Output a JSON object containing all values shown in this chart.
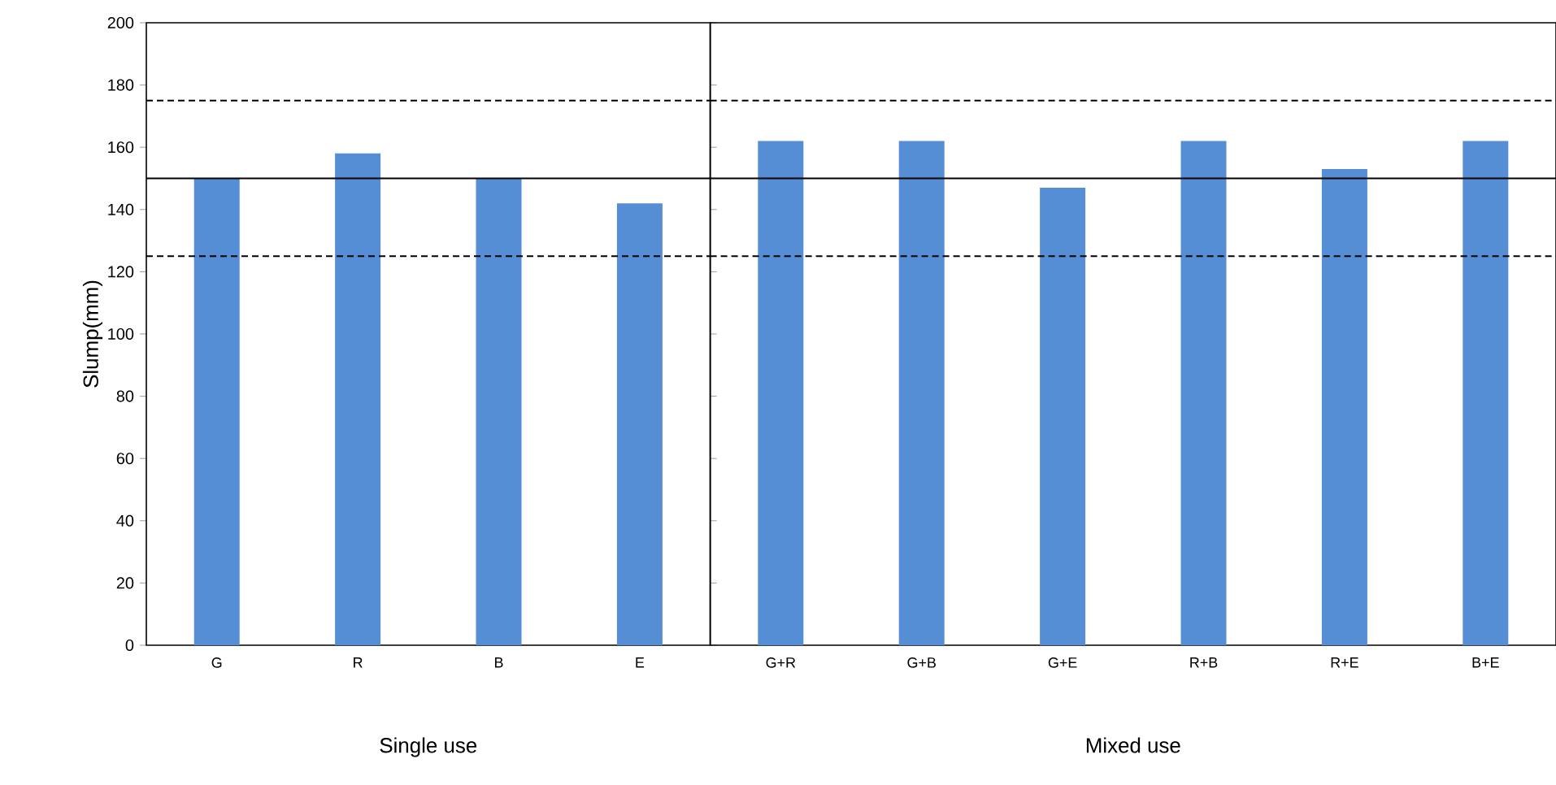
{
  "chart_data": [
    {
      "type": "bar",
      "ylabel": "Slump(mm)",
      "xlabel": "Single use",
      "categories": [
        "G",
        "R",
        "B",
        "E"
      ],
      "values": [
        150,
        158,
        150,
        142
      ],
      "color": "#558ed5",
      "ylim": [
        0,
        200
      ],
      "yticks": [
        0,
        20,
        40,
        60,
        80,
        100,
        120,
        140,
        160,
        180,
        200
      ],
      "ref_lines": [
        {
          "axis": "y",
          "value": 150,
          "line_style": "solid"
        },
        {
          "axis": "y",
          "value": 125,
          "line_style": "dashed"
        },
        {
          "axis": "y",
          "value": 175,
          "line_style": "dashed"
        }
      ]
    },
    {
      "type": "bar",
      "xlabel": "Mixed use",
      "categories": [
        "G+R",
        "G+B",
        "G+E",
        "R+B",
        "R+E",
        "B+E"
      ],
      "values": [
        162,
        162,
        147,
        162,
        153,
        162
      ],
      "color": "#558ed5",
      "ylim": [
        0,
        200
      ],
      "yticks": [
        0,
        20,
        40,
        60,
        80,
        100,
        120,
        140,
        160,
        180,
        200
      ],
      "tick_labels": "x",
      "ref_lines": [
        {
          "axis": "y",
          "value": 150,
          "line_style": "solid"
        },
        {
          "axis": "y",
          "value": 125,
          "line_style": "dashed"
        },
        {
          "axis": "y",
          "value": 175,
          "line_style": "dashed"
        }
      ]
    }
  ]
}
